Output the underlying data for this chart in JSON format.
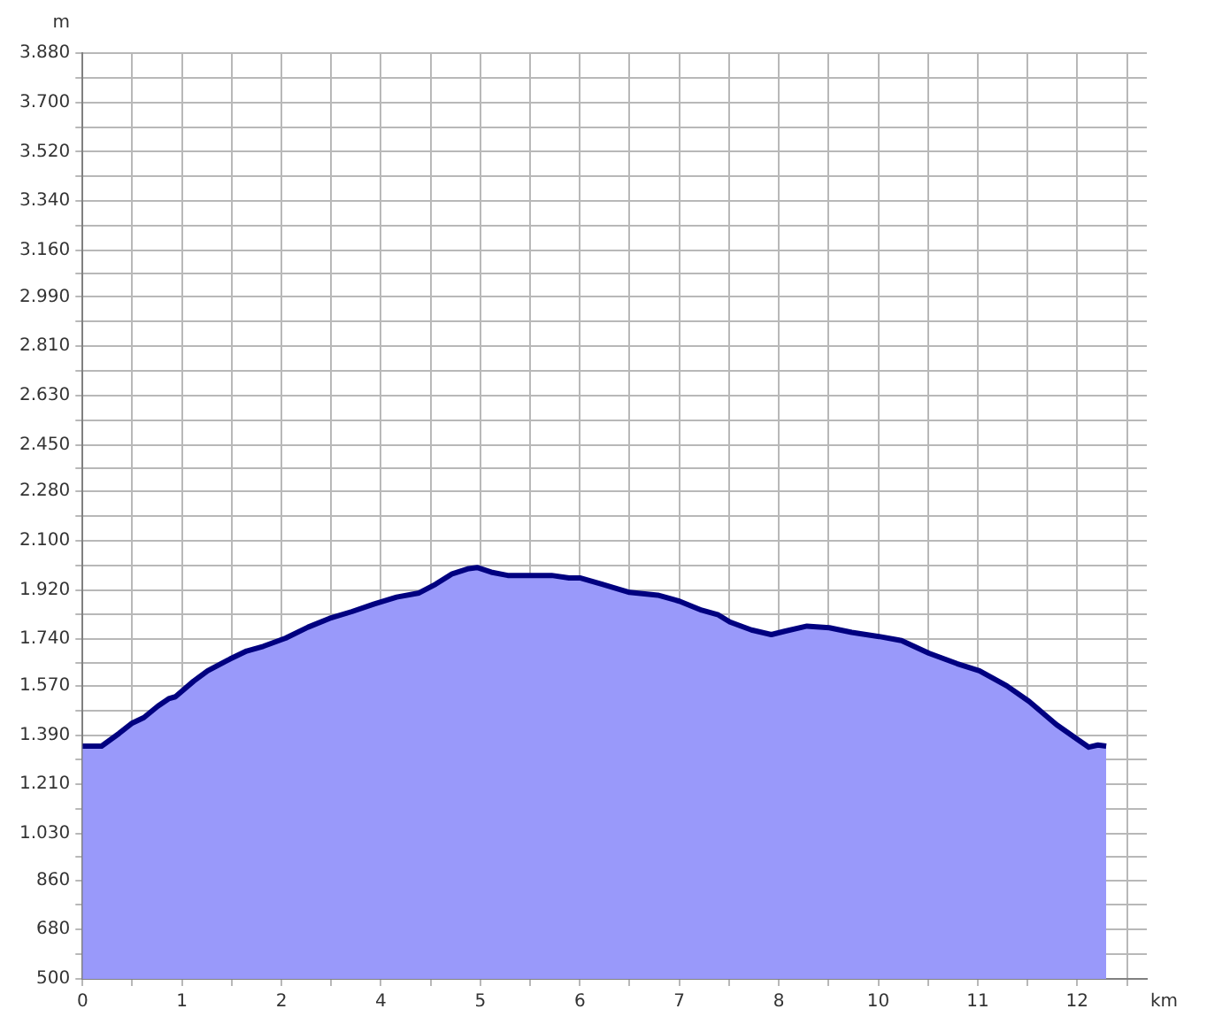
{
  "chart_data": {
    "type": "area",
    "xlabel": "km",
    "ylabel": "m",
    "legend": false,
    "grid": true,
    "marker": "none",
    "xlim": [
      0,
      12.84
    ],
    "ylim": [
      500,
      3880
    ],
    "xticks": [
      0,
      {
        "value": 0.6,
        "label": null
      },
      {
        "value": 1.2,
        "label": "1"
      },
      {
        "value": 1.8,
        "label": null
      },
      {
        "value": 2.4,
        "label": "2"
      },
      {
        "value": 3,
        "label": null
      },
      {
        "value": 3.6,
        "label": "4"
      },
      {
        "value": 4.2,
        "label": null
      },
      {
        "value": 4.8,
        "label": "5"
      },
      {
        "value": 5.4,
        "label": null
      },
      {
        "value": 6,
        "label": "6"
      },
      {
        "value": 6.6,
        "label": null
      },
      {
        "value": 7.2,
        "label": "7"
      },
      {
        "value": 7.8,
        "label": null
      },
      {
        "value": 8.4,
        "label": "8"
      },
      {
        "value": 9,
        "label": null
      },
      {
        "value": 9.6,
        "label": "10"
      },
      {
        "value": 10.2,
        "label": null
      },
      {
        "value": 10.8,
        "label": "11"
      },
      {
        "value": 11.4,
        "label": null
      },
      {
        "value": 12,
        "label": "12"
      },
      {
        "value": 12.6,
        "label": null
      }
    ],
    "yticks": [
      500,
      {
        "value": 590,
        "label": null
      },
      680,
      {
        "value": 770,
        "label": null
      },
      860,
      {
        "value": 945,
        "label": null
      },
      {
        "value": 1030,
        "label": "1.030"
      },
      {
        "value": 1120,
        "label": null
      },
      {
        "value": 1210,
        "label": "1.210"
      },
      {
        "value": 1300,
        "label": null
      },
      {
        "value": 1390,
        "label": "1.390"
      },
      {
        "value": 1480,
        "label": null
      },
      {
        "value": 1570,
        "label": "1.570"
      },
      {
        "value": 1655,
        "label": null
      },
      {
        "value": 1740,
        "label": "1.740"
      },
      {
        "value": 1830,
        "label": null
      },
      {
        "value": 1920,
        "label": "1.920"
      },
      {
        "value": 2010,
        "label": null
      },
      {
        "value": 2100,
        "label": "2.100"
      },
      {
        "value": 2190,
        "label": null
      },
      {
        "value": 2280,
        "label": "2.280"
      },
      {
        "value": 2365,
        "label": null
      },
      {
        "value": 2450,
        "label": "2.450"
      },
      {
        "value": 2540,
        "label": null
      },
      {
        "value": 2630,
        "label": "2.630"
      },
      {
        "value": 2720,
        "label": null
      },
      {
        "value": 2810,
        "label": "2.810"
      },
      {
        "value": 2900,
        "label": null
      },
      {
        "value": 2990,
        "label": "2.990"
      },
      {
        "value": 3075,
        "label": null
      },
      {
        "value": 3160,
        "label": "3.160"
      },
      {
        "value": 3250,
        "label": null
      },
      {
        "value": 3340,
        "label": "3.340"
      },
      {
        "value": 3430,
        "label": null
      },
      {
        "value": 3520,
        "label": "3.520"
      },
      {
        "value": 3610,
        "label": null
      },
      {
        "value": 3700,
        "label": "3.700"
      },
      {
        "value": 3790,
        "label": null
      },
      {
        "value": 3880,
        "label": "3.880"
      }
    ],
    "series": [
      {
        "color": "#000080",
        "x": [
          0,
          0.23,
          0.44,
          0.6,
          0.74,
          0.91,
          1.04,
          1.12,
          1.34,
          1.51,
          1.78,
          1.98,
          2.18,
          2.45,
          2.72,
          2.98,
          3.25,
          3.52,
          3.79,
          4.06,
          4.26,
          4.46,
          4.66,
          4.76,
          4.93,
          5.13,
          5.4,
          5.66,
          5.87,
          6.0,
          6.27,
          6.6,
          6.94,
          7.2,
          7.47,
          7.67,
          7.81,
          8.07,
          8.31,
          8.47,
          8.74,
          9.01,
          9.28,
          9.61,
          9.88,
          10.21,
          10.55,
          10.82,
          11.15,
          11.42,
          11.75,
          12.02,
          12.14,
          12.25,
          12.35
        ],
        "values": [
          1350,
          1350,
          1396,
          1434,
          1454,
          1496,
          1523,
          1530,
          1587,
          1625,
          1668,
          1697,
          1714,
          1744,
          1784,
          1816,
          1841,
          1869,
          1894,
          1909,
          1941,
          1979,
          1998,
          2002,
          1985,
          1973,
          1973,
          1973,
          1964,
          1964,
          1941,
          1911,
          1901,
          1879,
          1846,
          1829,
          1803,
          1774,
          1757,
          1769,
          1788,
          1782,
          1765,
          1750,
          1735,
          1689,
          1651,
          1625,
          1570,
          1513,
          1428,
          1371,
          1346,
          1354,
          1350
        ]
      }
    ]
  }
}
